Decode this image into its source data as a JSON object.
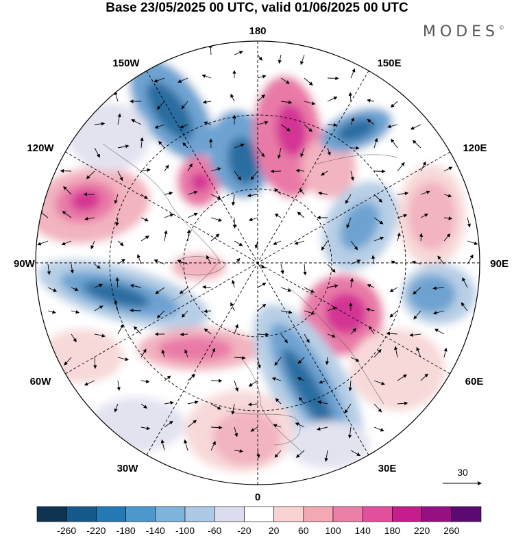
{
  "title": "Base 23/05/2025 00 UTC, valid 01/06/2025 00 UTC",
  "brand": "MODES",
  "brand_mark": "©",
  "meridian_labels": {
    "top": "180",
    "bottom": "0",
    "left": "90W",
    "right": "90E",
    "upper_left_1": "150W",
    "upper_left_2": "120W",
    "upper_right_1": "150E",
    "upper_right_2": "120E",
    "lower_left_1": "60W",
    "lower_left_2": "30W",
    "lower_right_1": "60E",
    "lower_right_2": "30E"
  },
  "reference_vector": {
    "value": "30"
  },
  "colorbar": {
    "ticks": [
      "-260",
      "-220",
      "-180",
      "-140",
      "-100",
      "-60",
      "-20",
      "20",
      "60",
      "100",
      "140",
      "180",
      "220",
      "260"
    ],
    "colors": [
      "#0f3350",
      "#155a8a",
      "#2478b4",
      "#4e97cc",
      "#7eb3dc",
      "#acc9e6",
      "#dcdcef",
      "#ffffff",
      "#f9d2d2",
      "#f3a8b4",
      "#ec7fa8",
      "#e2509d",
      "#c51e8c",
      "#960f83",
      "#5b0a71"
    ]
  },
  "anomaly_colors": {
    "neg_strong": "#2c6da0",
    "neg_mid": "#6ea3d1",
    "neg_weak": "#b7cfe6",
    "neg_faint": "#e3e3f0",
    "pos_faint": "#f8d9d9",
    "pos_weak": "#f2b4c0",
    "pos_mid": "#e97aa7",
    "pos_strong": "#d43594"
  }
}
